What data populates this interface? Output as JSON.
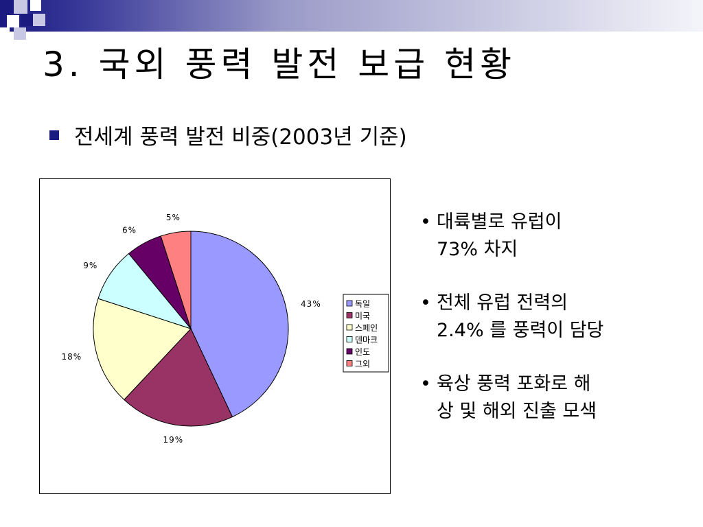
{
  "slide": {
    "title": "3. 국외 풍력 발전 보급 현황",
    "bullet": "전세계 풍력 발전 비중(2003년 기준)",
    "notes": [
      "대륙별로 유럽이\n73% 차지",
      "전체 유럽 전력의\n2.4% 를 풍력이 담당",
      "육상 풍력 포화로 해\n상 및 해외 진출 모색"
    ],
    "accent_color": "#1a1a80"
  },
  "chart_data": {
    "type": "pie",
    "categories": [
      "독일",
      "미국",
      "스페인",
      "덴마크",
      "인도",
      "그외"
    ],
    "values": [
      43,
      19,
      18,
      9,
      6,
      5
    ],
    "labels": [
      "43%",
      "19%",
      "18%",
      "9%",
      "6%",
      "5%"
    ],
    "colors": [
      "#9999ff",
      "#993366",
      "#ffffcc",
      "#ccffff",
      "#660066",
      "#ff8080"
    ],
    "legend_position": "right"
  }
}
